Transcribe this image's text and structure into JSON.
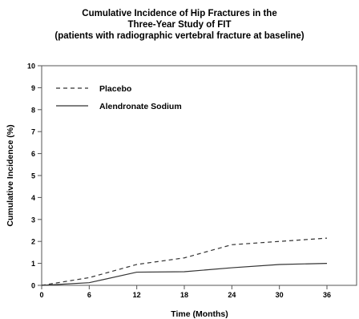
{
  "chart_data": {
    "type": "line",
    "title_lines": [
      "Cumulative Incidence of Hip Fractures in the",
      "Three-Year Study of FIT",
      "(patients with radiographic vertebral fracture at baseline)"
    ],
    "xlabel": "Time (Months)",
    "ylabel": "Cumulative Incidence (%)",
    "xlim": [
      0,
      36
    ],
    "ylim": [
      0,
      10
    ],
    "xticks": [
      "0",
      "6",
      "12",
      "18",
      "24",
      "30",
      "36"
    ],
    "yticks": [
      "0",
      "1",
      "2",
      "3",
      "4",
      "5",
      "6",
      "7",
      "8",
      "9",
      "10"
    ],
    "x": [
      0,
      6,
      12,
      18,
      24,
      30,
      36
    ],
    "grid": false,
    "legend_position": "top-left",
    "series": [
      {
        "name": "Placebo",
        "style": "dashed",
        "color": "#333333",
        "values": [
          0,
          0.35,
          0.95,
          1.25,
          1.85,
          2.0,
          2.15
        ]
      },
      {
        "name": "Alendronate Sodium",
        "style": "solid",
        "color": "#333333",
        "values": [
          0,
          0.12,
          0.6,
          0.62,
          0.8,
          0.95,
          1.0
        ]
      }
    ]
  }
}
